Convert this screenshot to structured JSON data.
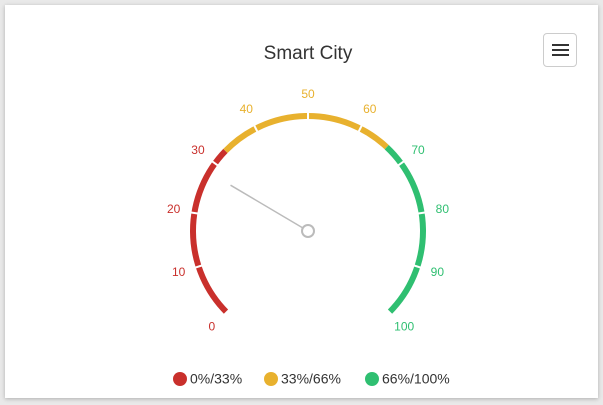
{
  "chart_data": {
    "type": "gauge",
    "title": "Smart City",
    "value": 28,
    "ylim": [
      0,
      100
    ],
    "yticks": [
      0,
      10,
      20,
      30,
      40,
      50,
      60,
      70,
      80,
      90,
      100
    ],
    "bands": [
      {
        "name": "0%/33%",
        "color": "#c9302c",
        "from": 0,
        "to": 33
      },
      {
        "name": "33%/66%",
        "color": "#e8b12e",
        "from": 33,
        "to": 66
      },
      {
        "name": "66%/100%",
        "color": "#2fbf71",
        "from": 66,
        "to": 100
      }
    ],
    "needle_color": "#bbbbbb"
  }
}
